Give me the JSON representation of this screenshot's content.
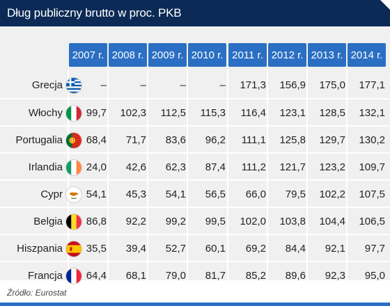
{
  "header": {
    "title": "Dług publiczny brutto w proc. PKB"
  },
  "footer": {
    "source": "Źródło: Eurostat"
  },
  "colors": {
    "header_bg": "#0b2a55",
    "tab_bg": "#2a6fc3",
    "panel_bg": "#f0f0f0"
  },
  "chart_data": {
    "type": "table",
    "columns": [
      "2007 r.",
      "2008 r.",
      "2009 r.",
      "2010 r.",
      "2011 r.",
      "2012 r.",
      "2013 r.",
      "2014 r."
    ],
    "rows": [
      {
        "country": "Grecja",
        "flag": "greece-flag-icon",
        "values": [
          "–",
          "–",
          "–",
          "–",
          "171,3",
          "156,9",
          "175,0",
          "177,1"
        ]
      },
      {
        "country": "Włochy",
        "flag": "italy-flag-icon",
        "values": [
          "99,7",
          "102,3",
          "112,5",
          "115,3",
          "116,4",
          "123,1",
          "128,5",
          "132,1"
        ]
      },
      {
        "country": "Portugalia",
        "flag": "portugal-flag-icon",
        "values": [
          "68,4",
          "71,7",
          "83,6",
          "96,2",
          "111,1",
          "125,8",
          "129,7",
          "130,2"
        ]
      },
      {
        "country": "Irlandia",
        "flag": "ireland-flag-icon",
        "values": [
          "24,0",
          "42,6",
          "62,3",
          "87,4",
          "111,2",
          "121,7",
          "123,2",
          "109,7"
        ]
      },
      {
        "country": "Cypr",
        "flag": "cyprus-flag-icon",
        "values": [
          "54,1",
          "45,3",
          "54,1",
          "56,5",
          "66,0",
          "79,5",
          "102,2",
          "107,5"
        ]
      },
      {
        "country": "Belgia",
        "flag": "belgium-flag-icon",
        "values": [
          "86,8",
          "92,2",
          "99,2",
          "99,5",
          "102,0",
          "103,8",
          "104,4",
          "106,5"
        ]
      },
      {
        "country": "Hiszpania",
        "flag": "spain-flag-icon",
        "values": [
          "35,5",
          "39,4",
          "52,7",
          "60,1",
          "69,2",
          "84,4",
          "92,1",
          "97,7"
        ]
      },
      {
        "country": "Francja",
        "flag": "france-flag-icon",
        "values": [
          "64,4",
          "68,1",
          "79,0",
          "81,7",
          "85,2",
          "89,6",
          "92,3",
          "95,0"
        ]
      }
    ]
  }
}
